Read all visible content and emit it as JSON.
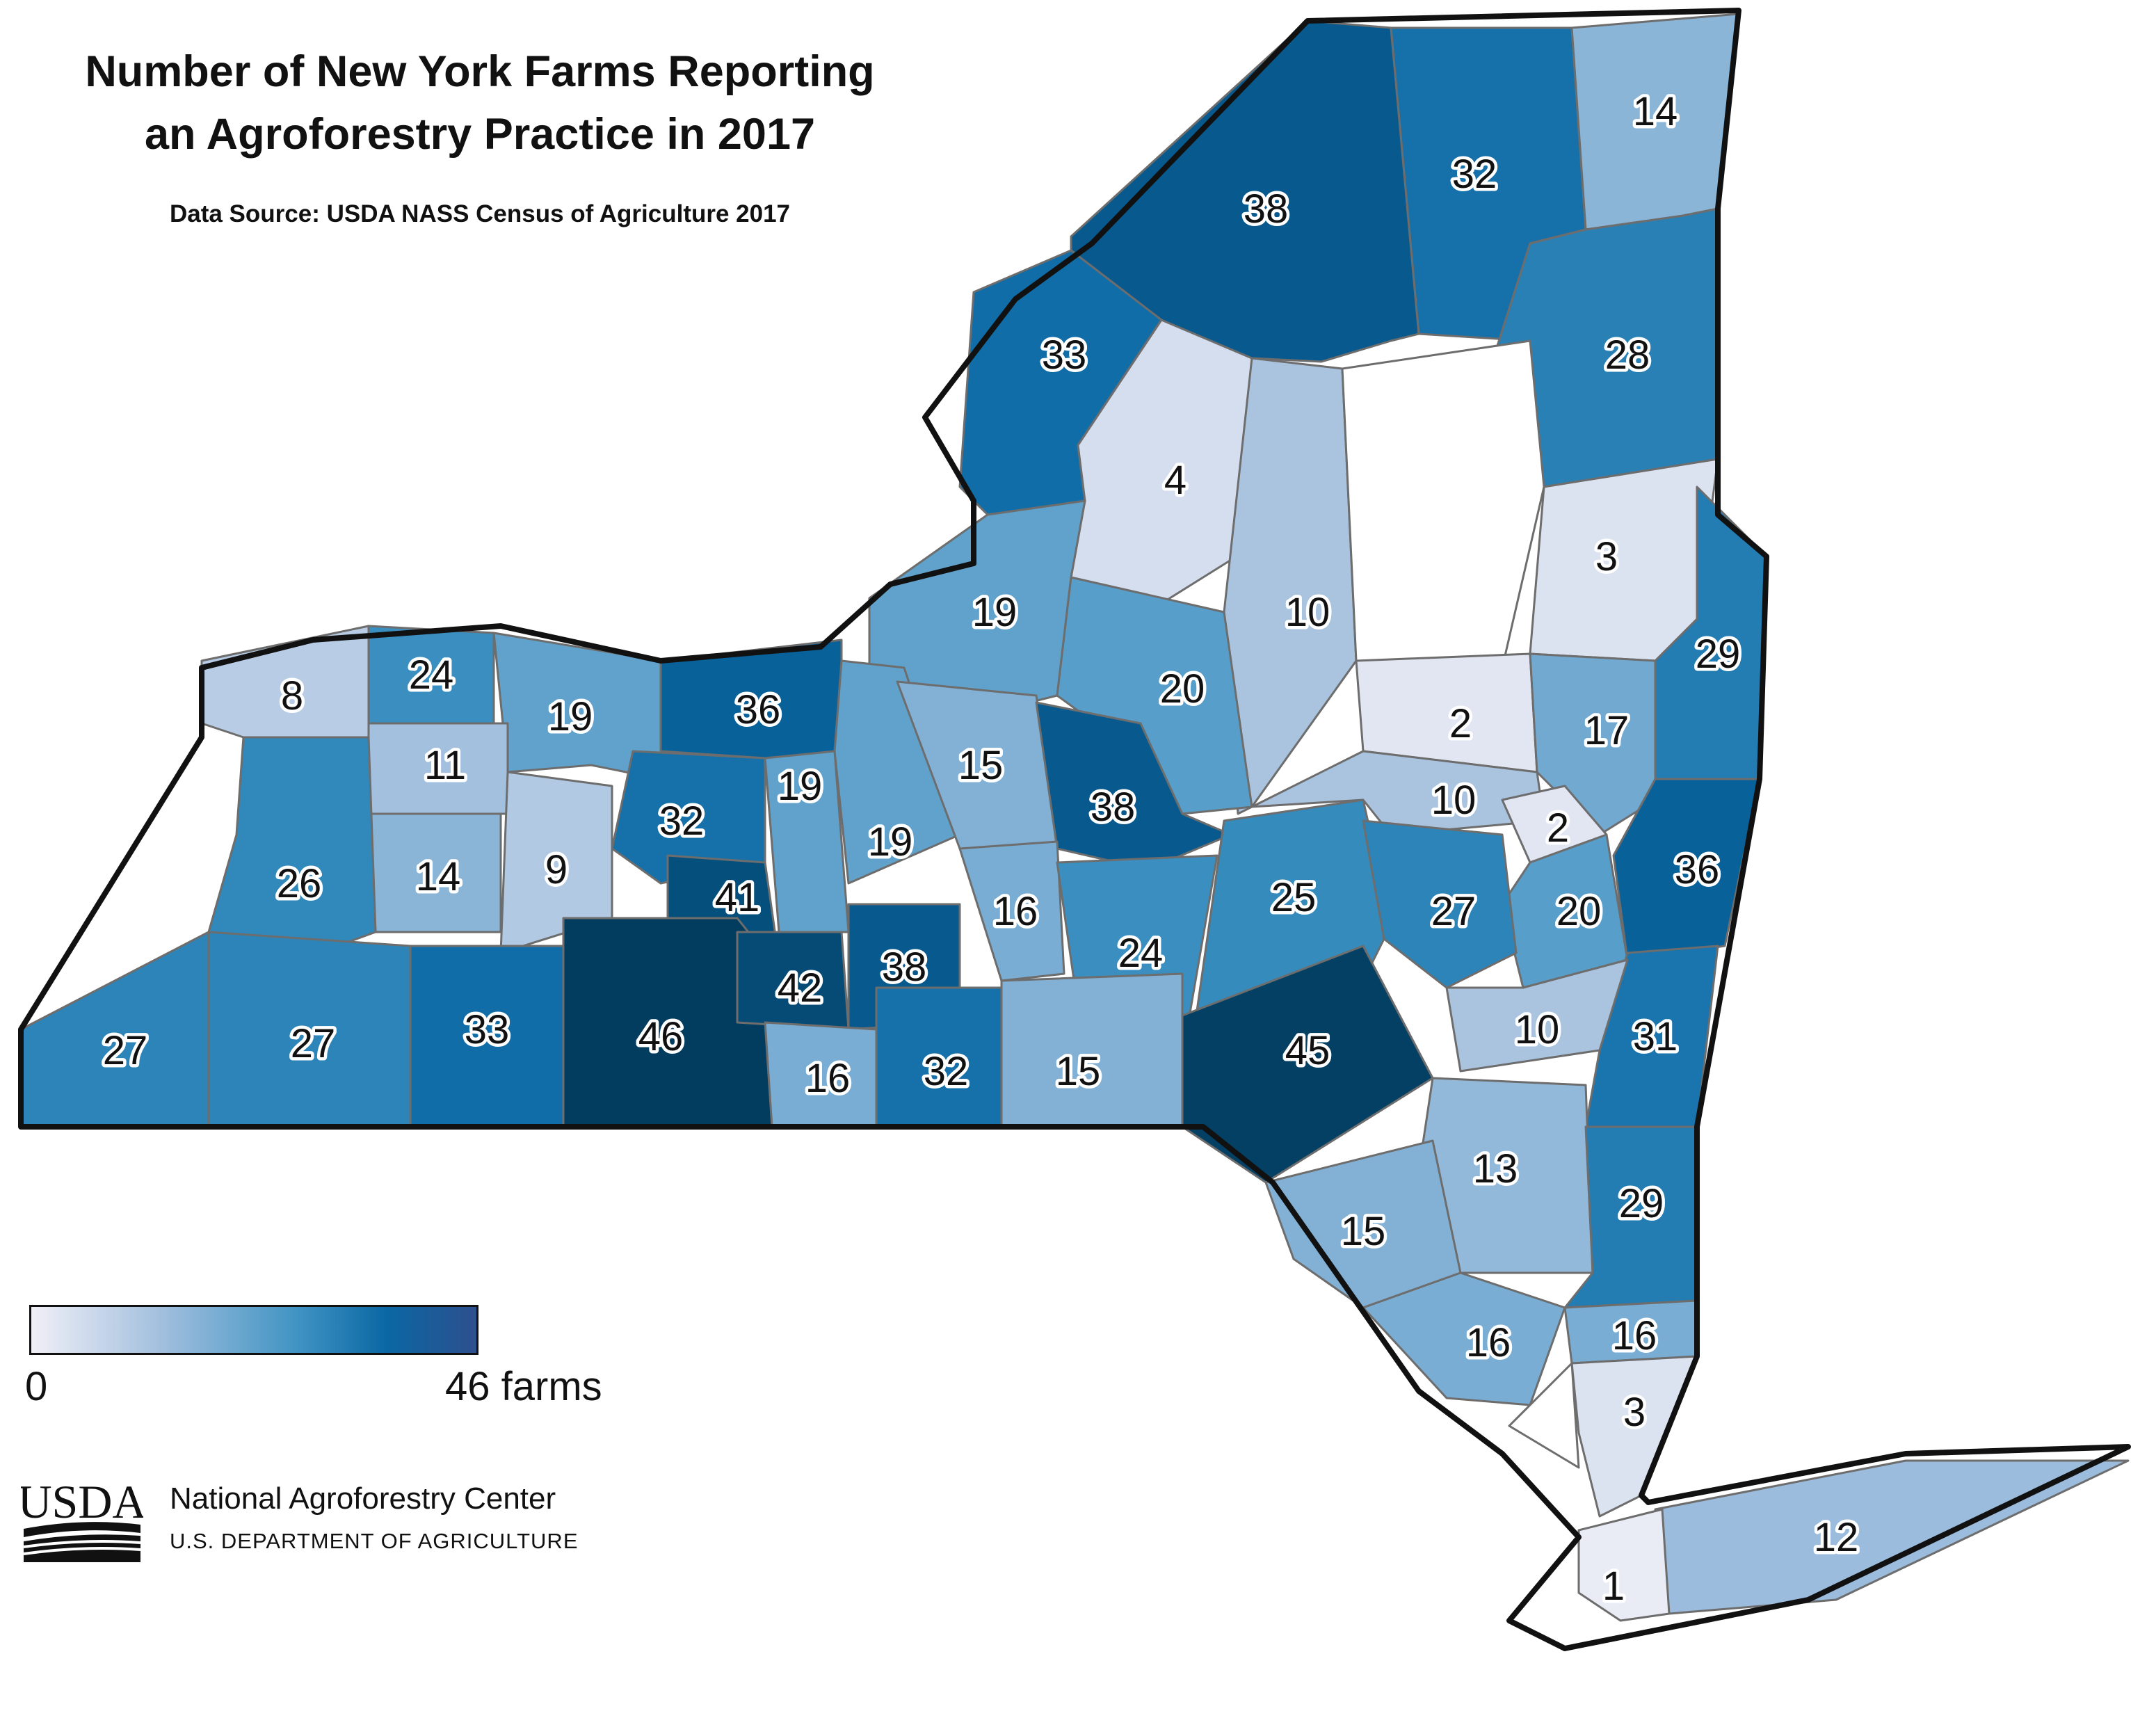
{
  "title_line1": "Number of New York Farms Reporting",
  "title_line2": "an Agroforestry Practice in 2017",
  "source": "Data Source: USDA NASS Census of Agriculture 2017",
  "legend": {
    "min_label": "0",
    "max_label": "46 farms",
    "min": 0,
    "max": 46,
    "colors": [
      "#f0eff7",
      "#9fbedd",
      "#3f93c3",
      "#0a67a3",
      "#023c5e"
    ]
  },
  "logo": {
    "wordmark": "USDA"
  },
  "agency": {
    "name": "National Agroforestry Center",
    "department": "U.S. DEPARTMENT OF AGRICULTURE"
  },
  "counties": [
    {
      "id": "st-lawrence",
      "value": 38
    },
    {
      "id": "franklin",
      "value": 32
    },
    {
      "id": "clinton",
      "value": 14
    },
    {
      "id": "jefferson",
      "value": 33
    },
    {
      "id": "essex",
      "value": 28
    },
    {
      "id": "lewis",
      "value": 4
    },
    {
      "id": "herkimer",
      "value": 10
    },
    {
      "id": "hamilton",
      "value": null
    },
    {
      "id": "warren",
      "value": 3
    },
    {
      "id": "washington",
      "value": 29
    },
    {
      "id": "oswego",
      "value": 19
    },
    {
      "id": "oneida",
      "value": 20
    },
    {
      "id": "fulton",
      "value": 2
    },
    {
      "id": "saratoga",
      "value": 17
    },
    {
      "id": "montgomery",
      "value": 10
    },
    {
      "id": "schenectady",
      "value": 2
    },
    {
      "id": "rensselaer",
      "value": 36
    },
    {
      "id": "albany",
      "value": 20
    },
    {
      "id": "niagara",
      "value": 8
    },
    {
      "id": "orleans",
      "value": 24
    },
    {
      "id": "monroe",
      "value": 19
    },
    {
      "id": "wayne",
      "value": 36
    },
    {
      "id": "genesee",
      "value": 11
    },
    {
      "id": "ontario",
      "value": 32
    },
    {
      "id": "seneca",
      "value": 19
    },
    {
      "id": "cayuga",
      "value": 19
    },
    {
      "id": "onondaga",
      "value": 15
    },
    {
      "id": "madison",
      "value": 38
    },
    {
      "id": "livingston",
      "value": 9
    },
    {
      "id": "wyoming",
      "value": 14
    },
    {
      "id": "erie",
      "value": 26
    },
    {
      "id": "yates",
      "value": 41
    },
    {
      "id": "cortland",
      "value": 16
    },
    {
      "id": "chenango",
      "value": 24
    },
    {
      "id": "otsego",
      "value": 25
    },
    {
      "id": "schoharie",
      "value": 27
    },
    {
      "id": "columbia",
      "value": 31
    },
    {
      "id": "greene",
      "value": 10
    },
    {
      "id": "chautauqua",
      "value": 27
    },
    {
      "id": "cattaraugus",
      "value": 27
    },
    {
      "id": "allegany",
      "value": 33
    },
    {
      "id": "steuben",
      "value": 46
    },
    {
      "id": "schuyler",
      "value": 42
    },
    {
      "id": "tompkins",
      "value": 38
    },
    {
      "id": "chemung",
      "value": 16
    },
    {
      "id": "tioga",
      "value": 32
    },
    {
      "id": "broome",
      "value": 15
    },
    {
      "id": "delaware",
      "value": 45
    },
    {
      "id": "ulster",
      "value": 13
    },
    {
      "id": "dutchess",
      "value": 29
    },
    {
      "id": "sullivan",
      "value": 15
    },
    {
      "id": "orange",
      "value": 16
    },
    {
      "id": "putnam",
      "value": 16
    },
    {
      "id": "westchester",
      "value": 3
    },
    {
      "id": "rockland",
      "value": null
    },
    {
      "id": "suffolk",
      "value": 12
    },
    {
      "id": "nyc",
      "value": 1
    }
  ]
}
